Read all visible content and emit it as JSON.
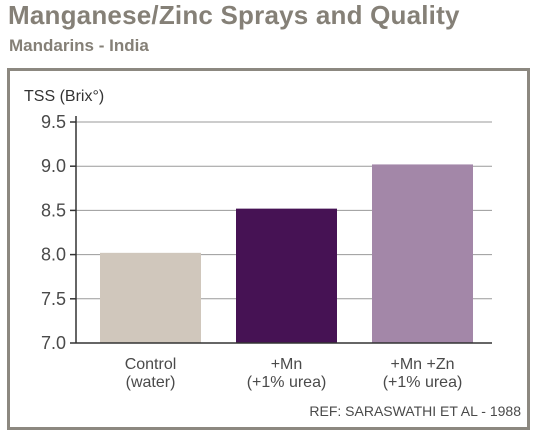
{
  "chart_data": {
    "type": "bar",
    "title": "Manganese/Zinc Sprays and Quality",
    "subtitle": "Mandarins - India",
    "ylabel": "TSS (Brix°)",
    "xlabel": "",
    "ylim": [
      7.0,
      9.5
    ],
    "yticks": [
      "7.0",
      "7.5",
      "8.0",
      "8.5",
      "9.0",
      "9.5"
    ],
    "categories": [
      [
        "Control",
        "(water)"
      ],
      [
        "+Mn",
        "(+1% urea)"
      ],
      [
        "+Mn +Zn",
        "(+1% urea)"
      ]
    ],
    "values": [
      8.02,
      8.52,
      9.02
    ],
    "colors": [
      "#d0c7bc",
      "#461254",
      "#a387a8"
    ],
    "grid": true,
    "legend": "none",
    "source": "REF: SARASWATHI ET AL - 1988"
  }
}
